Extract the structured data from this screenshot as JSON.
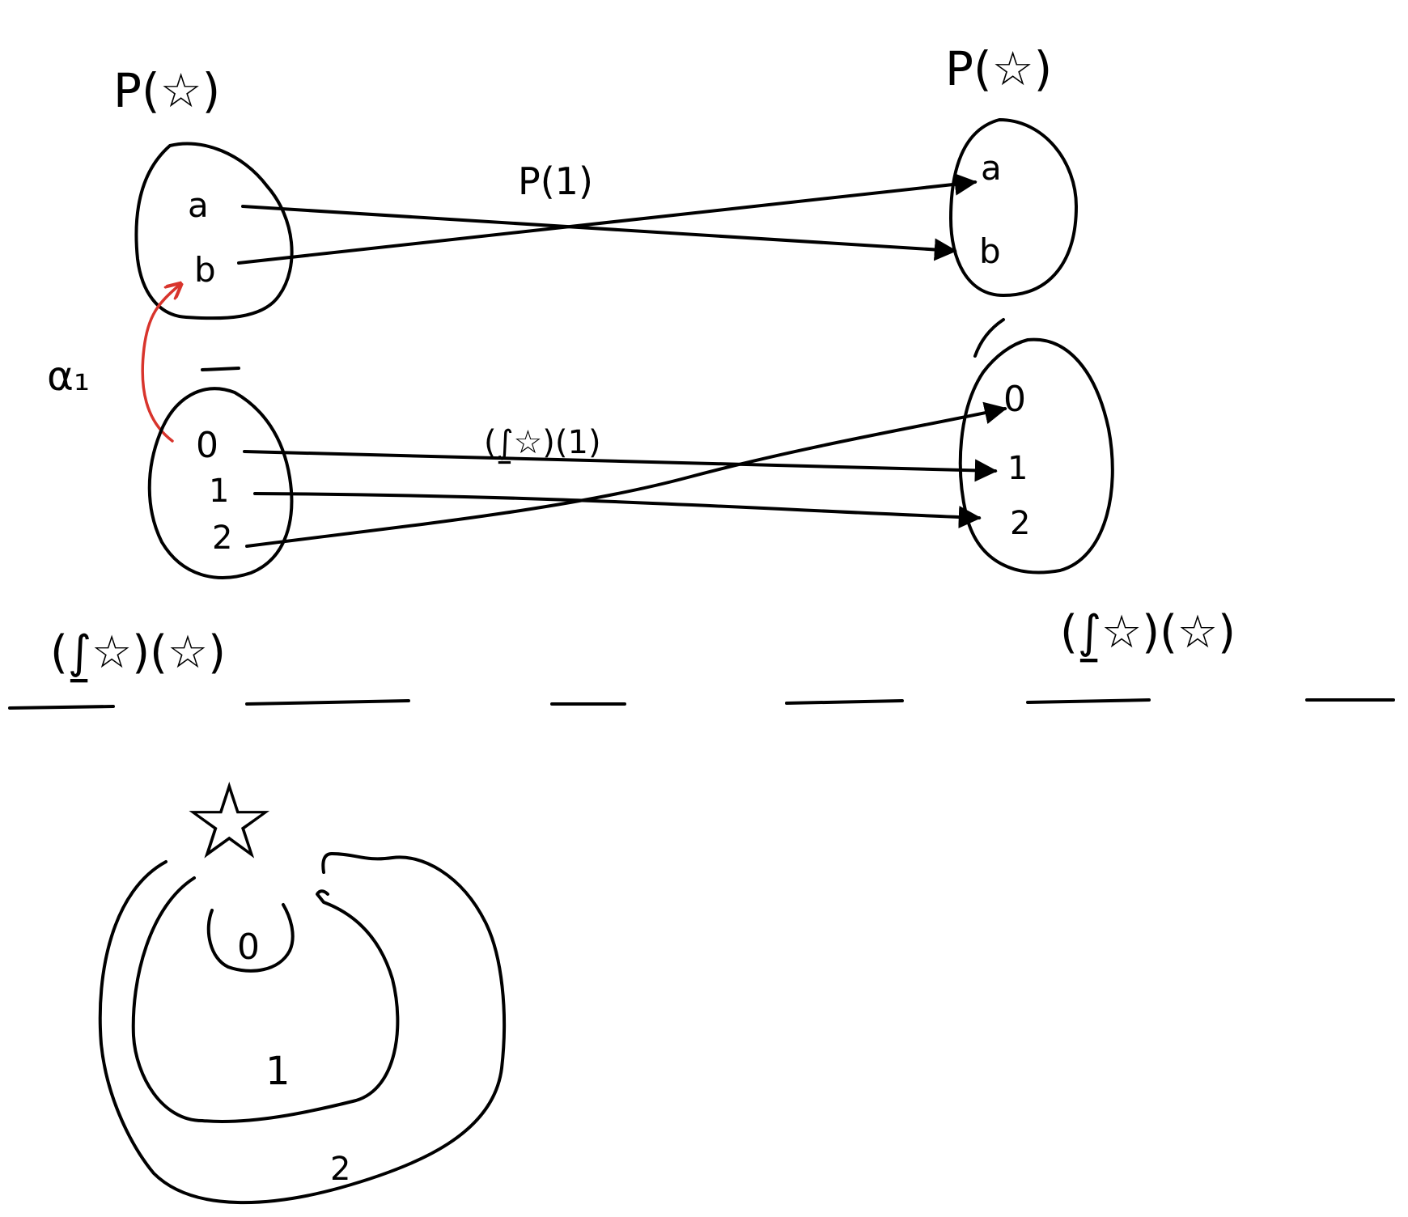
{
  "colors": {
    "ink": "#000000",
    "highlight": "#d8342c",
    "background": "#ffffff"
  },
  "labels": {
    "top_left": "P(☆)",
    "top_right": "P(☆)",
    "top_map": "P(1)",
    "bottom_map": "(⨜☆)(1)",
    "bottom_left": "(⨜☆)(☆)",
    "bottom_right": "(⨜☆)(☆)",
    "alpha": "α₁",
    "star": "☆"
  },
  "sets": {
    "p_left": [
      "a",
      "b"
    ],
    "p_right": [
      "a",
      "b"
    ],
    "y_left": [
      "0",
      "1",
      "2"
    ],
    "y_right": [
      "0",
      "1",
      "2"
    ]
  },
  "nested": {
    "inner": "0",
    "middle": "1",
    "outer": "2"
  }
}
